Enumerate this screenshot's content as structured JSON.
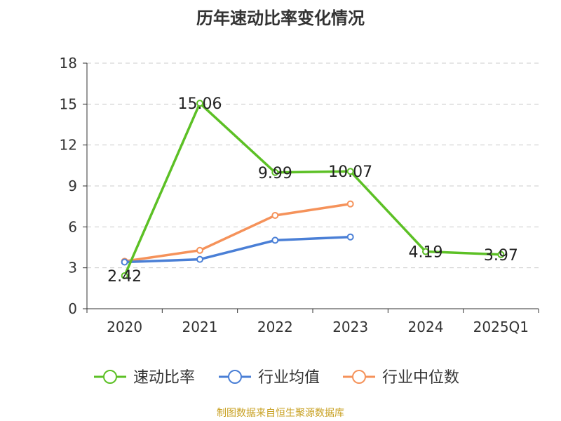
{
  "title": "历年速动比率变化情况",
  "source": "制图数据来自恒生聚源数据库",
  "chart_data": {
    "type": "line",
    "categories": [
      "2020",
      "2021",
      "2022",
      "2023",
      "2024",
      "2025Q1"
    ],
    "ylim": [
      0,
      18
    ],
    "yticks": [
      0,
      3,
      6,
      9,
      12,
      15,
      18
    ],
    "grid": true,
    "legend_position": "bottom",
    "series": [
      {
        "name": "速动比率",
        "color": "#5cc025",
        "values": [
          2.42,
          15.06,
          9.99,
          10.07,
          4.19,
          3.97
        ],
        "labels": true
      },
      {
        "name": "行业均值",
        "color": "#4a7fd6",
        "values": [
          3.42,
          3.62,
          5.02,
          5.26,
          null,
          null
        ],
        "labels": false
      },
      {
        "name": "行业中位数",
        "color": "#f5925a",
        "values": [
          3.48,
          4.28,
          6.84,
          7.68,
          null,
          null
        ],
        "labels": false
      }
    ]
  }
}
